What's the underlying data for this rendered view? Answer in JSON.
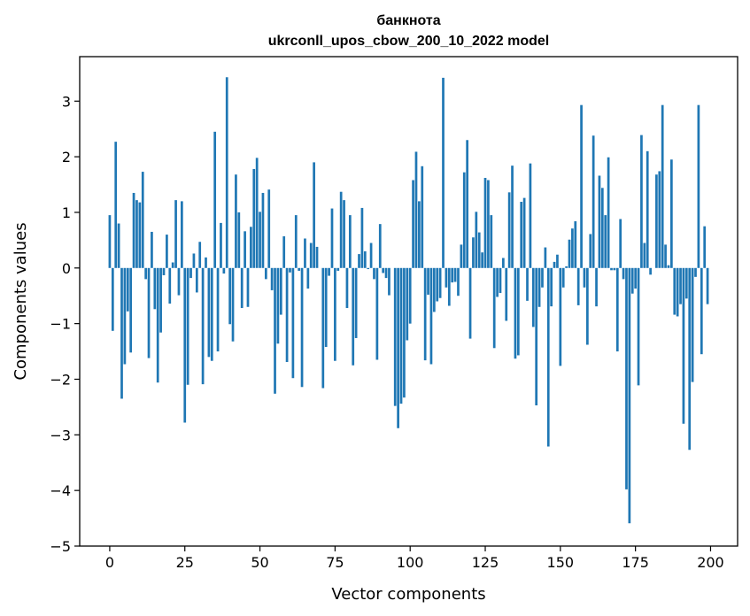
{
  "chart_data": {
    "type": "bar",
    "title": [
      "банкнота",
      "ukrconll_upos_cbow_200_10_2022 model"
    ],
    "xlabel": "Vector components",
    "ylabel": "Components values",
    "xlim": [
      -10,
      209
    ],
    "ylim": [
      -5,
      3.8
    ],
    "xticks": [
      0,
      25,
      50,
      75,
      100,
      125,
      150,
      175,
      200
    ],
    "xtick_labels": [
      "0",
      "25",
      "50",
      "75",
      "100",
      "125",
      "150",
      "175",
      "200"
    ],
    "yticks": [
      -5,
      -4,
      -3,
      -2,
      -1,
      0,
      1,
      2,
      3
    ],
    "ytick_labels": [
      "−5",
      "−4",
      "−3",
      "−2",
      "−1",
      "0",
      "1",
      "2",
      "3"
    ],
    "bar_color": "#1f77b4",
    "grid": false,
    "values": [
      0.95,
      -1.13,
      2.27,
      0.8,
      -2.35,
      -1.73,
      -0.78,
      -1.52,
      1.35,
      1.22,
      1.18,
      1.73,
      -0.2,
      -1.62,
      0.65,
      -0.74,
      -2.06,
      -1.16,
      -0.13,
      0.6,
      -0.64,
      0.1,
      1.22,
      -0.49,
      1.2,
      -2.78,
      -2.1,
      -0.18,
      0.26,
      -0.44,
      0.47,
      -2.09,
      0.19,
      -1.6,
      -1.67,
      2.45,
      -1.5,
      0.81,
      -0.1,
      3.43,
      -1.01,
      -1.32,
      1.68,
      1.0,
      -0.72,
      0.66,
      -0.7,
      0.74,
      1.78,
      1.98,
      1.01,
      1.35,
      -0.2,
      1.41,
      -0.4,
      -2.26,
      -1.36,
      -0.84,
      0.57,
      -1.69,
      -0.08,
      -1.98,
      0.95,
      -0.05,
      -2.14,
      0.53,
      -0.37,
      0.45,
      1.9,
      0.38,
      0.0,
      -2.16,
      -1.42,
      -0.14,
      1.07,
      -1.67,
      -0.05,
      1.37,
      1.22,
      -0.72,
      0.95,
      -1.75,
      -1.26,
      0.25,
      1.08,
      0.3,
      -0.02,
      0.45,
      -0.2,
      -1.65,
      0.79,
      -0.09,
      -0.18,
      -0.49,
      0.0,
      -2.48,
      -2.88,
      -2.44,
      -2.33,
      -1.3,
      -1.0,
      1.58,
      2.09,
      1.2,
      1.83,
      -1.66,
      -0.48,
      -1.73,
      -0.79,
      -0.6,
      -0.54,
      3.42,
      -0.35,
      -0.68,
      -0.26,
      -0.25,
      -0.5,
      0.42,
      1.72,
      2.3,
      -1.27,
      0.55,
      1.01,
      0.64,
      0.28,
      1.62,
      1.58,
      0.95,
      -1.44,
      -0.52,
      -0.45,
      0.18,
      -0.95,
      1.36,
      1.84,
      -1.63,
      -1.57,
      1.19,
      1.26,
      -0.59,
      1.88,
      -1.06,
      -2.47,
      -0.7,
      -0.35,
      0.37,
      -3.21,
      -0.69,
      0.11,
      0.24,
      -1.76,
      -0.35,
      0.03,
      0.51,
      0.71,
      0.84,
      -0.67,
      2.93,
      -0.35,
      -1.38,
      0.61,
      2.38,
      -0.69,
      1.66,
      1.44,
      0.95,
      1.99,
      -0.04,
      -0.04,
      -1.5,
      0.88,
      -0.2,
      -3.98,
      -4.59,
      -0.46,
      -0.37,
      -2.11,
      2.39,
      0.45,
      2.1,
      -0.12,
      0.0,
      1.68,
      1.74,
      2.93,
      0.42,
      0.05,
      1.95,
      -0.84,
      -0.87,
      -0.65,
      -2.8,
      -0.55,
      -3.27,
      -2.05,
      -0.16,
      2.93,
      -1.55,
      0.75,
      -0.65
    ]
  }
}
